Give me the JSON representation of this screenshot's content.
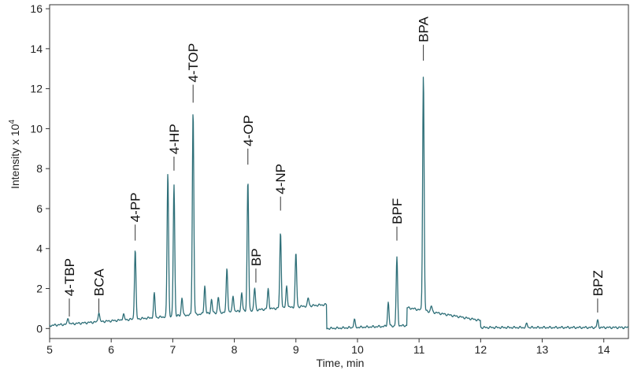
{
  "chart_data": {
    "type": "line",
    "title": "",
    "xlabel": "Time, min",
    "ylabel": "Intensity x 10",
    "ylabel_exponent": "4",
    "xlim": [
      5,
      14.4
    ],
    "ylim": [
      -0.5,
      16.2
    ],
    "x_ticks": [
      5,
      6,
      7,
      8,
      9,
      10,
      11,
      12,
      13,
      14
    ],
    "y_ticks": [
      0,
      2,
      4,
      6,
      8,
      10,
      12,
      14,
      16
    ],
    "grid": false,
    "line_color": "#2e6f78",
    "baseline_segments": [
      {
        "x": [
          5.0,
          9.5
        ],
        "y": [
          0.15,
          1.2
        ]
      },
      {
        "x": [
          9.5,
          10.8
        ],
        "y": [
          0.0,
          0.15
        ]
      },
      {
        "x": [
          10.8,
          12.0
        ],
        "y": [
          1.05,
          0.4
        ]
      },
      {
        "x": [
          12.0,
          14.4
        ],
        "y": [
          0.05,
          0.05
        ]
      }
    ],
    "peaks": [
      {
        "x": 5.3,
        "height": 0.3
      },
      {
        "x": 5.8,
        "height": 0.5
      },
      {
        "x": 6.2,
        "height": 0.3
      },
      {
        "x": 6.39,
        "height": 3.5
      },
      {
        "x": 6.7,
        "height": 1.2
      },
      {
        "x": 6.92,
        "height": 7.2
      },
      {
        "x": 7.02,
        "height": 6.6
      },
      {
        "x": 7.15,
        "height": 0.9
      },
      {
        "x": 7.33,
        "height": 10.2
      },
      {
        "x": 7.52,
        "height": 1.4
      },
      {
        "x": 7.63,
        "height": 0.7
      },
      {
        "x": 7.74,
        "height": 0.8
      },
      {
        "x": 7.88,
        "height": 2.2
      },
      {
        "x": 7.98,
        "height": 0.8
      },
      {
        "x": 8.12,
        "height": 0.9
      },
      {
        "x": 8.22,
        "height": 6.5
      },
      {
        "x": 8.33,
        "height": 1.1
      },
      {
        "x": 8.55,
        "height": 1.0
      },
      {
        "x": 8.75,
        "height": 3.8
      },
      {
        "x": 8.85,
        "height": 1.1
      },
      {
        "x": 9.0,
        "height": 2.7
      },
      {
        "x": 9.2,
        "height": 0.4
      },
      {
        "x": 9.95,
        "height": 0.4
      },
      {
        "x": 10.5,
        "height": 1.2
      },
      {
        "x": 10.64,
        "height": 3.4
      },
      {
        "x": 11.07,
        "height": 11.8
      },
      {
        "x": 11.2,
        "height": 0.3
      },
      {
        "x": 12.75,
        "height": 0.2
      },
      {
        "x": 13.9,
        "height": 0.35
      }
    ],
    "annotations": [
      {
        "label": "4-TBP",
        "x": 5.32,
        "tip": 0.6,
        "top": 1.5
      },
      {
        "label": "BCA",
        "x": 5.8,
        "tip": 0.8,
        "top": 1.5
      },
      {
        "label": "4-PP",
        "x": 6.39,
        "tip": 4.4,
        "top": 5.2
      },
      {
        "label": "4-HP",
        "x": 7.02,
        "tip": 7.9,
        "top": 8.6
      },
      {
        "label": "4-TOP",
        "x": 7.33,
        "tip": 11.3,
        "top": 12.2
      },
      {
        "label": "4-OP",
        "x": 8.22,
        "tip": 8.2,
        "top": 9.0
      },
      {
        "label": "BP",
        "x": 8.35,
        "tip": 2.3,
        "top": 3.0
      },
      {
        "label": "4-NP",
        "x": 8.75,
        "tip": 5.9,
        "top": 6.6
      },
      {
        "label": "BPF",
        "x": 10.64,
        "tip": 4.4,
        "top": 5.1
      },
      {
        "label": "BPA",
        "x": 11.07,
        "tip": 13.4,
        "top": 14.2
      },
      {
        "label": "BPZ",
        "x": 13.9,
        "tip": 0.8,
        "top": 1.5
      }
    ]
  }
}
